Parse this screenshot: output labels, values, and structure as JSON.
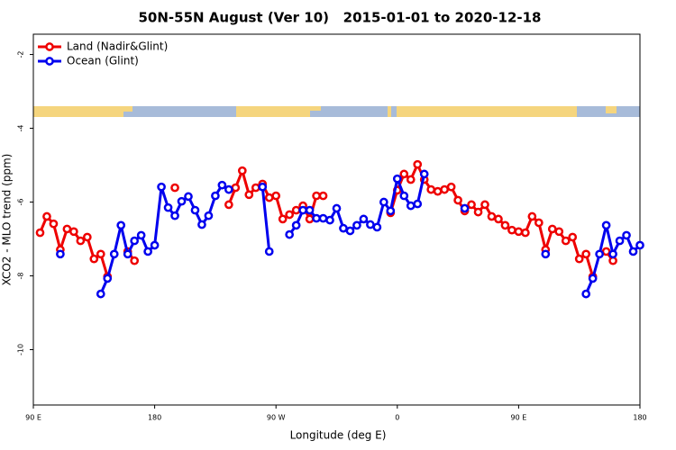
{
  "chart_data": {
    "type": "line",
    "title": "50N-55N August (Ver 10)   2015-01-01 to 2020-12-18",
    "xlabel": "Longitude (deg E)",
    "ylabel": "XCO2 - MLO trend (ppm)",
    "xlim": [
      90,
      540
    ],
    "ylim": [
      -11.5,
      -1.45
    ],
    "xticks": [
      {
        "value": 90,
        "label": "90 E"
      },
      180,
      {
        "value": 270,
        "label": "90 W"
      },
      {
        "value": 360,
        "label": "0"
      },
      {
        "value": 450,
        "label": "90 E"
      },
      {
        "value": 540,
        "label": "180"
      }
    ],
    "yticks": [
      -2,
      -4,
      -6,
      -8,
      -10
    ],
    "legend": "upper left",
    "series": [
      {
        "name": "Land (Nadir&Glint)",
        "color": "#ee0000",
        "x": [
          95,
          100,
          105,
          110,
          115,
          120,
          125,
          130,
          135,
          140,
          145,
          150,
          160,
          165,
          170,
          195,
          200,
          235,
          240,
          245,
          250,
          255,
          260,
          265,
          270,
          275,
          280,
          285,
          290,
          295,
          300,
          305,
          310,
          355,
          360,
          365,
          370,
          375,
          380,
          385,
          390,
          395,
          400,
          405,
          410,
          415,
          420,
          425,
          430,
          435,
          440,
          445,
          450,
          455,
          460,
          465,
          470,
          475,
          480,
          485,
          490,
          495,
          500,
          505,
          510,
          515,
          520
        ],
        "values": [
          -6.83,
          -6.39,
          -6.59,
          -7.29,
          -6.73,
          -6.8,
          -7.05,
          -6.95,
          -7.54,
          -7.41,
          -8.02,
          null,
          -7.34,
          -7.59,
          null,
          -5.61,
          null,
          -6.07,
          -5.61,
          -5.15,
          -5.8,
          -5.61,
          -5.51,
          -5.88,
          -5.83,
          -6.46,
          -6.34,
          -6.22,
          -6.1,
          -6.46,
          -5.83,
          -5.83,
          null,
          -6.29,
          -5.68,
          -5.24,
          -5.39,
          -4.98,
          -5.39,
          -5.66,
          -5.71,
          -5.66,
          -5.59,
          -5.95,
          -6.24,
          -6.07,
          -6.27,
          -6.07,
          -6.39,
          -6.46,
          -6.63,
          -6.76,
          -6.8,
          -6.83,
          -6.39,
          -6.56,
          -7.29,
          -6.73,
          -6.8,
          -7.05,
          -6.95,
          -7.54,
          -7.41,
          -8.02,
          null,
          -7.34,
          -7.59
        ]
      },
      {
        "name": "Ocean (Glint)",
        "color": "#0000ee",
        "x": [
          110,
          115,
          140,
          145,
          150,
          155,
          160,
          165,
          170,
          175,
          180,
          185,
          190,
          195,
          200,
          205,
          210,
          215,
          220,
          225,
          230,
          235,
          240,
          260,
          265,
          270,
          280,
          285,
          290,
          295,
          300,
          305,
          310,
          315,
          320,
          325,
          330,
          335,
          340,
          345,
          350,
          355,
          360,
          365,
          370,
          375,
          380,
          385,
          410,
          415,
          470,
          475,
          500,
          505,
          510,
          515,
          520,
          525,
          530,
          535,
          540
        ],
        "values": [
          -7.41,
          null,
          -8.49,
          -8.07,
          -7.41,
          -6.63,
          -7.41,
          -7.05,
          -6.9,
          -7.34,
          -7.17,
          -5.59,
          -6.15,
          -6.37,
          -5.98,
          -5.85,
          -6.22,
          -6.61,
          -6.37,
          -5.83,
          -5.54,
          -5.66,
          null,
          -5.59,
          -7.34,
          null,
          -6.88,
          -6.63,
          -6.22,
          -6.22,
          -6.44,
          -6.44,
          -6.49,
          -6.17,
          -6.71,
          -6.78,
          -6.63,
          -6.46,
          -6.61,
          -6.68,
          -6.0,
          -6.24,
          -5.37,
          -5.83,
          -6.1,
          -6.05,
          -5.24,
          null,
          -6.17,
          null,
          -7.41,
          null,
          -8.49,
          -8.07,
          -7.41,
          -6.63,
          -7.41,
          -7.05,
          -6.9,
          -7.34,
          -7.17
        ]
      }
    ]
  }
}
